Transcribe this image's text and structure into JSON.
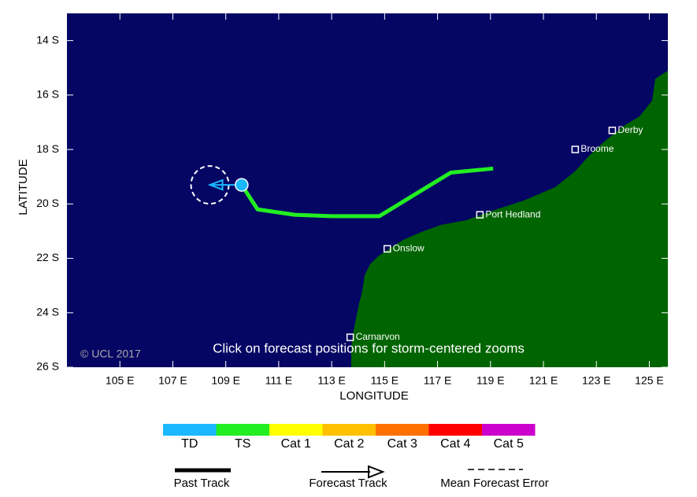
{
  "chart_data": {
    "type": "map",
    "x_label": "LONGITUDE",
    "y_label": "LATITUDE",
    "xlim": [
      103,
      125.7
    ],
    "ylim": [
      -26,
      -13
    ],
    "xticks": [
      {
        "value": 105,
        "label": "105 E"
      },
      {
        "value": 107,
        "label": "107 E"
      },
      {
        "value": 109,
        "label": "109 E"
      },
      {
        "value": 111,
        "label": "111 E"
      },
      {
        "value": 113,
        "label": "113 E"
      },
      {
        "value": 115,
        "label": "115 E"
      },
      {
        "value": 117,
        "label": "117 E"
      },
      {
        "value": 119,
        "label": "119 E"
      },
      {
        "value": 121,
        "label": "121 E"
      },
      {
        "value": 123,
        "label": "123 E"
      },
      {
        "value": 125,
        "label": "125 E"
      }
    ],
    "yticks": [
      {
        "value": -14,
        "label": "14 S"
      },
      {
        "value": -16,
        "label": "16 S"
      },
      {
        "value": -18,
        "label": "18 S"
      },
      {
        "value": -20,
        "label": "20 S"
      },
      {
        "value": -22,
        "label": "22 S"
      },
      {
        "value": -24,
        "label": "24 S"
      },
      {
        "value": -26,
        "label": "26 S"
      }
    ],
    "past_track": {
      "color": "#22ee22",
      "lon": [
        119.1,
        117.5,
        116.4,
        114.8,
        113,
        111.6,
        110.2,
        109.6
      ],
      "lat": [
        -18.7,
        -18.85,
        -19.5,
        -20.45,
        -20.45,
        -20.4,
        -20.2,
        -19.3
      ]
    },
    "forecast_track": {
      "color": "#1ab8ff",
      "lon": [
        109.6,
        108.4
      ],
      "lat": [
        -19.3,
        -19.3
      ]
    },
    "cities": [
      {
        "label": "Derby",
        "lon": 123.6,
        "lat": -17.3
      },
      {
        "label": "Broome",
        "lon": 122.2,
        "lat": -18.0
      },
      {
        "label": "Port Hedland",
        "lon": 118.6,
        "lat": -20.4
      },
      {
        "label": "Onslow",
        "lon": 115.1,
        "lat": -21.65
      },
      {
        "label": "Carnarvon",
        "lon": 113.7,
        "lat": -24.9
      }
    ],
    "copyright": "© UCL 2017",
    "note": "Click on forecast positions for storm-centered zooms",
    "intensity_legend": [
      {
        "label": "TD",
        "color": "#1ab8ff"
      },
      {
        "label": "TS",
        "color": "#22ee22"
      },
      {
        "label": "Cat 1",
        "color": "#ffff00"
      },
      {
        "label": "Cat 2",
        "color": "#ffc000"
      },
      {
        "label": "Cat 3",
        "color": "#ff7000"
      },
      {
        "label": "Cat 4",
        "color": "#ff0000"
      },
      {
        "label": "Cat 5",
        "color": "#cc00cc"
      }
    ],
    "track_legend": [
      "Past Track",
      "Forecast Track",
      "Mean Forecast Error"
    ]
  }
}
